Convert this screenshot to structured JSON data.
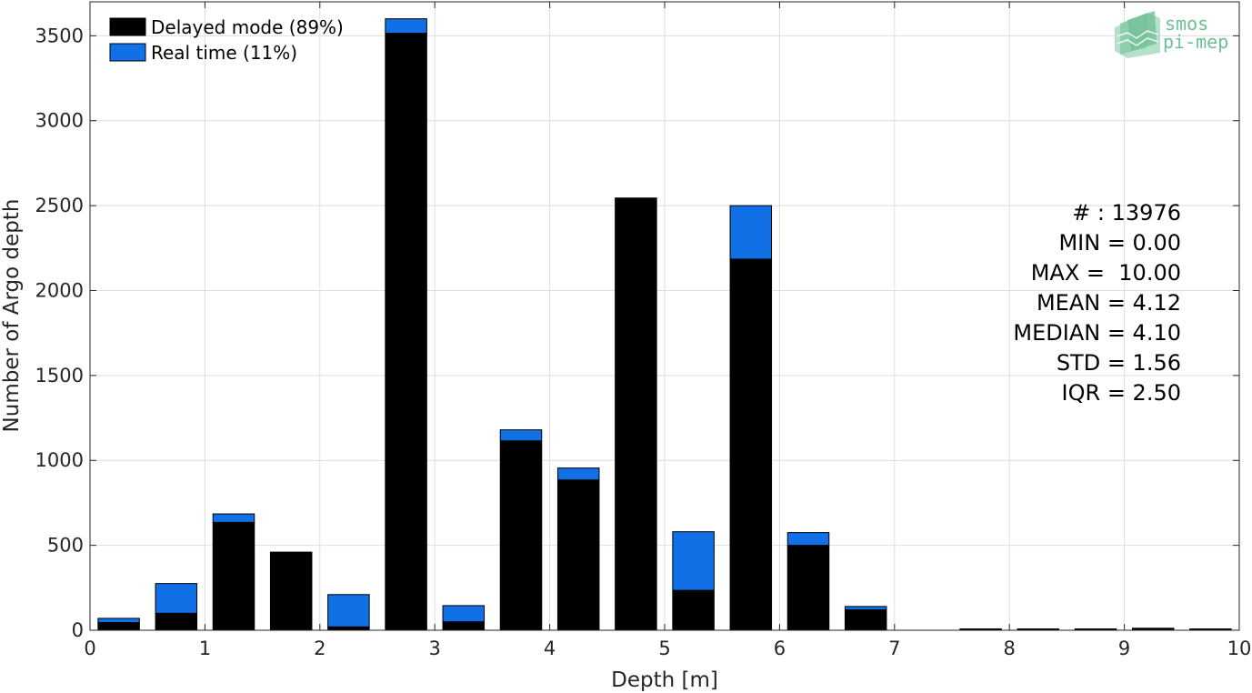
{
  "chart_data": {
    "type": "bar",
    "stacked": true,
    "xlabel": "Depth [m]",
    "ylabel": "Number of Argo depth",
    "xlim": [
      0,
      10
    ],
    "ylim": [
      0,
      3700
    ],
    "xticks": [
      "0",
      "1",
      "2",
      "3",
      "4",
      "5",
      "6",
      "7",
      "8",
      "9",
      "10"
    ],
    "yticks": [
      "0",
      "500",
      "1000",
      "1500",
      "2000",
      "2500",
      "3000",
      "3500"
    ],
    "grid": true,
    "legend_position": "top-left",
    "bin_width": 0.5,
    "x": [
      0.25,
      0.75,
      1.25,
      1.75,
      2.25,
      2.75,
      3.25,
      3.75,
      4.25,
      4.75,
      5.25,
      5.75,
      6.25,
      6.75,
      7.25,
      7.75,
      8.25,
      8.75,
      9.25,
      9.75
    ],
    "series": [
      {
        "name": "Delayed mode (89%)",
        "color": "#000000",
        "values": [
          45,
          100,
          635,
          460,
          20,
          3515,
          50,
          1115,
          885,
          2545,
          235,
          2185,
          500,
          120,
          0,
          8,
          8,
          8,
          12,
          8
        ]
      },
      {
        "name": "Real time (11%)",
        "color": "#1170e6",
        "values": [
          25,
          175,
          50,
          0,
          190,
          85,
          95,
          65,
          70,
          0,
          345,
          315,
          75,
          20,
          0,
          0,
          0,
          0,
          0,
          0
        ]
      }
    ],
    "stats": [
      "# : 13976",
      "MIN = 0.00",
      "MAX =  10.00",
      "MEAN = 4.12",
      "MEDIAN = 4.10",
      "STD = 1.56",
      "IQR = 2.50"
    ]
  },
  "logo": {
    "line1": "smos",
    "line2": "pi-mep",
    "color": "#6fbf95"
  }
}
